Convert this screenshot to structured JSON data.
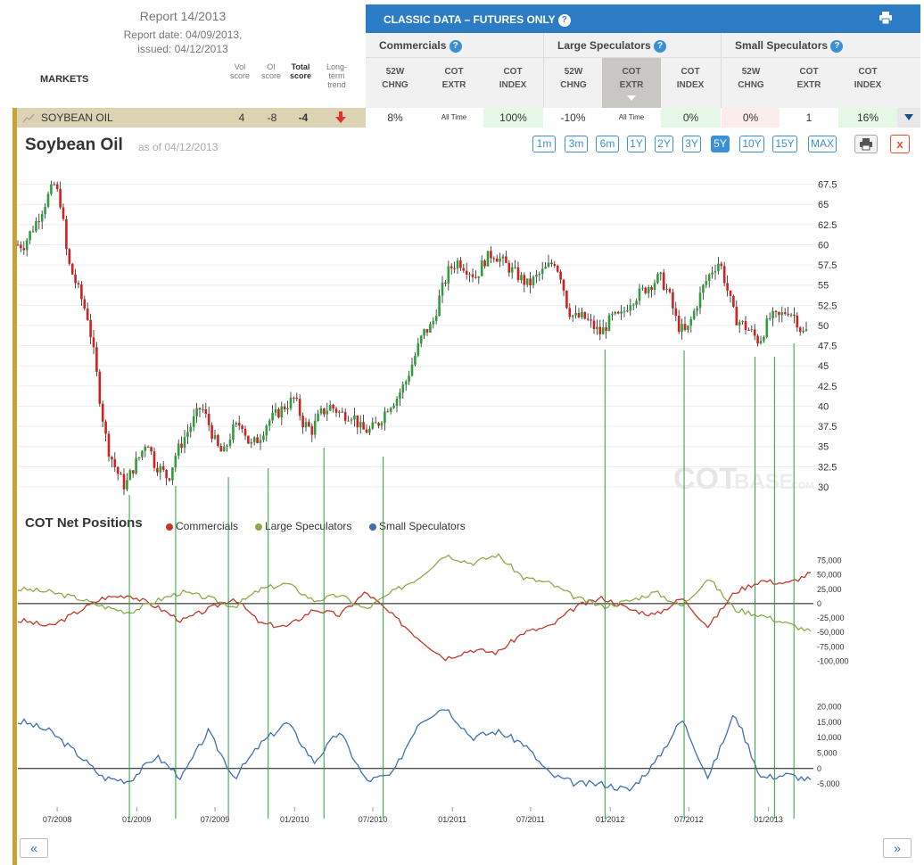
{
  "report": {
    "title": "Report 14/2013",
    "date": "Report date: 04/09/2013,",
    "issued": "issued: 04/12/2013"
  },
  "markets_header": {
    "label": "MARKETS",
    "vol": [
      "Vol",
      "score"
    ],
    "oi": [
      "OI",
      "score"
    ],
    "total": [
      "Total",
      "score"
    ],
    "trend": [
      "Long-",
      "term",
      "trend"
    ]
  },
  "panel": {
    "title": "CLASSIC DATA – FUTURES ONLY",
    "help": "?",
    "groups": [
      "Commercials",
      "Large Speculators",
      "Small Speculators"
    ],
    "columns": [
      [
        "52W",
        "CHNG"
      ],
      [
        "COT",
        "EXTR"
      ],
      [
        "COT",
        "INDEX"
      ],
      [
        "52W",
        "CHNG"
      ],
      [
        "COT",
        "EXTR"
      ],
      [
        "COT",
        "INDEX"
      ],
      [
        "52W",
        "CHNG"
      ],
      [
        "COT",
        "EXTR"
      ],
      [
        "COT",
        "INDEX"
      ]
    ]
  },
  "market_row": {
    "name": "SOYBEAN OIL",
    "vol_score": "4",
    "oi_score": "-8",
    "total_score": "-4",
    "cells": [
      "8%",
      "All Time",
      "100%",
      "-10%",
      "All Time",
      "0%",
      "0%",
      "1",
      "16%"
    ],
    "cell_colors": [
      "#fff",
      "#fff",
      "#e5f8e5",
      "#fff",
      "#fff",
      "#e5f8e5",
      "#fdecec",
      "#fff",
      "#e5f8e5"
    ]
  },
  "chart_header": {
    "title": "Soybean Oil",
    "asof": "as of 04/12/2013",
    "ranges": [
      "1m",
      "3m",
      "6m",
      "1Y",
      "2Y",
      "3Y",
      "5Y",
      "10Y",
      "15Y",
      "MAX"
    ],
    "active_range": "5Y",
    "close": "x"
  },
  "cot": {
    "title": "COT Net Positions",
    "legend": [
      "Commercials",
      "Large Speculators",
      "Small Speculators"
    ]
  },
  "watermark": {
    "bold": "COT",
    "light": "BASE",
    "suffix": ".COM"
  },
  "nav": {
    "prev": "«",
    "next": "»"
  },
  "colors": {
    "accent": "#2b7cc4",
    "commercials": "#c0392b",
    "large_specs": "#8aab4a",
    "small_specs": "#3e6fae",
    "up_candle": "#2e9e3a",
    "down_candle": "#d21f1f",
    "vline": "#2e9e3a",
    "sidebar": "#c9a233"
  },
  "chart_data": [
    {
      "type": "candlestick",
      "title": "Soybean Oil",
      "y_ticks": [
        "67.5",
        "65",
        "62.5",
        "60",
        "57.5",
        "55",
        "52.5",
        "50",
        "47.5",
        "45",
        "42.5",
        "40",
        "37.5",
        "35",
        "32.5",
        "30"
      ],
      "ylim": [
        29,
        69
      ],
      "x_ticks": [
        "07/2008",
        "01/2009",
        "07/2009",
        "01/2010",
        "07/2010",
        "01/2011",
        "07/2011",
        "01/2012",
        "07/2012",
        "01/2013"
      ],
      "x_range": [
        "2008-04",
        "2013-04"
      ],
      "close_anchors": [
        [
          "2008-04-15",
          60
        ],
        [
          "2008-05-15",
          63
        ],
        [
          "2008-06-10",
          66
        ],
        [
          "2008-06-25",
          67.5
        ],
        [
          "2008-07-10",
          65
        ],
        [
          "2008-07-25",
          58
        ],
        [
          "2008-08-15",
          55
        ],
        [
          "2008-09-10",
          51
        ],
        [
          "2008-09-25",
          46
        ],
        [
          "2008-10-10",
          40
        ],
        [
          "2008-10-25",
          35
        ],
        [
          "2008-11-15",
          32
        ],
        [
          "2008-12-05",
          30
        ],
        [
          "2008-12-20",
          32
        ],
        [
          "2009-01-10",
          34
        ],
        [
          "2009-01-25",
          36
        ],
        [
          "2009-02-10",
          33
        ],
        [
          "2009-02-28",
          32
        ],
        [
          "2009-03-15",
          31
        ],
        [
          "2009-04-01",
          34
        ],
        [
          "2009-04-20",
          36
        ],
        [
          "2009-05-10",
          38
        ],
        [
          "2009-05-30",
          40
        ],
        [
          "2009-06-15",
          38
        ],
        [
          "2009-07-05",
          35
        ],
        [
          "2009-07-20",
          34
        ],
        [
          "2009-08-10",
          37
        ],
        [
          "2009-09-01",
          38
        ],
        [
          "2009-09-20",
          35
        ],
        [
          "2009-10-10",
          36
        ],
        [
          "2009-10-30",
          38
        ],
        [
          "2009-11-20",
          39
        ],
        [
          "2009-12-10",
          40
        ],
        [
          "2010-01-01",
          41
        ],
        [
          "2010-01-20",
          38
        ],
        [
          "2010-02-10",
          37
        ],
        [
          "2010-03-01",
          39
        ],
        [
          "2010-03-25",
          40
        ],
        [
          "2010-04-20",
          39
        ],
        [
          "2010-05-15",
          39
        ],
        [
          "2010-06-05",
          37
        ],
        [
          "2010-06-25",
          37
        ],
        [
          "2010-07-15",
          38
        ],
        [
          "2010-08-05",
          40
        ],
        [
          "2010-08-25",
          41
        ],
        [
          "2010-09-15",
          43
        ],
        [
          "2010-10-05",
          46
        ],
        [
          "2010-10-25",
          49
        ],
        [
          "2010-11-15",
          50
        ],
        [
          "2010-12-05",
          54
        ],
        [
          "2010-12-25",
          57
        ],
        [
          "2011-01-15",
          58
        ],
        [
          "2011-02-05",
          57
        ],
        [
          "2011-02-25",
          56
        ],
        [
          "2011-03-15",
          58
        ],
        [
          "2011-04-05",
          59
        ],
        [
          "2011-04-25",
          58
        ],
        [
          "2011-05-15",
          57
        ],
        [
          "2011-06-05",
          56
        ],
        [
          "2011-06-25",
          55
        ],
        [
          "2011-07-15",
          56
        ],
        [
          "2011-08-05",
          57
        ],
        [
          "2011-08-25",
          58
        ],
        [
          "2011-09-10",
          56
        ],
        [
          "2011-09-25",
          52
        ],
        [
          "2011-10-10",
          51
        ],
        [
          "2011-11-01",
          51
        ],
        [
          "2011-11-20",
          50
        ],
        [
          "2011-12-10",
          49
        ],
        [
          "2012-01-05",
          51
        ],
        [
          "2012-01-25",
          51
        ],
        [
          "2012-02-15",
          53
        ],
        [
          "2012-03-10",
          54
        ],
        [
          "2012-04-01",
          55
        ],
        [
          "2012-04-25",
          56
        ],
        [
          "2012-05-15",
          54
        ],
        [
          "2012-06-05",
          50
        ],
        [
          "2012-06-25",
          49
        ],
        [
          "2012-07-15",
          52
        ],
        [
          "2012-08-05",
          55
        ],
        [
          "2012-08-25",
          57
        ],
        [
          "2012-09-10",
          58
        ],
        [
          "2012-09-25",
          55
        ],
        [
          "2012-10-15",
          51
        ],
        [
          "2012-11-05",
          50
        ],
        [
          "2012-11-25",
          49
        ],
        [
          "2012-12-10",
          48
        ],
        [
          "2013-01-05",
          51
        ],
        [
          "2013-01-25",
          51
        ],
        [
          "2013-02-15",
          52
        ],
        [
          "2013-03-05",
          51
        ],
        [
          "2013-03-20",
          49
        ],
        [
          "2013-04-05",
          49.5
        ]
      ]
    },
    {
      "type": "line",
      "title": "COT Net Positions",
      "y_ticks": [
        "75,000",
        "50,000",
        "25,000",
        "0",
        "-25,000",
        "-50,000",
        "-75,000",
        "-100,000"
      ],
      "ylim": [
        -110000,
        85000
      ],
      "series": [
        {
          "name": "Commercials",
          "values": [
            [
              "2008-04",
              -30000
            ],
            [
              "2008-06",
              -40000
            ],
            [
              "2008-08",
              -15000
            ],
            [
              "2008-10",
              10000
            ],
            [
              "2008-12",
              15000
            ],
            [
              "2009-02",
              -5000
            ],
            [
              "2009-04",
              -30000
            ],
            [
              "2009-06",
              -10000
            ],
            [
              "2009-08",
              10000
            ],
            [
              "2009-10",
              -35000
            ],
            [
              "2009-12",
              -40000
            ],
            [
              "2010-02",
              -10000
            ],
            [
              "2010-04",
              -20000
            ],
            [
              "2010-06",
              20000
            ],
            [
              "2010-08",
              -20000
            ],
            [
              "2010-10",
              -60000
            ],
            [
              "2010-12",
              -95000
            ],
            [
              "2011-02",
              -80000
            ],
            [
              "2011-04",
              -85000
            ],
            [
              "2011-06",
              -50000
            ],
            [
              "2011-08",
              -40000
            ],
            [
              "2011-10",
              -5000
            ],
            [
              "2011-12",
              10000
            ],
            [
              "2012-02",
              -10000
            ],
            [
              "2012-04",
              -20000
            ],
            [
              "2012-06",
              10000
            ],
            [
              "2012-08",
              -40000
            ],
            [
              "2012-10",
              20000
            ],
            [
              "2012-12",
              40000
            ],
            [
              "2013-02",
              35000
            ],
            [
              "2013-04",
              55000
            ]
          ]
        },
        {
          "name": "Large Speculators",
          "values": [
            [
              "2008-04",
              25000
            ],
            [
              "2008-06",
              20000
            ],
            [
              "2008-08",
              10000
            ],
            [
              "2008-10",
              -5000
            ],
            [
              "2008-12",
              -15000
            ],
            [
              "2009-02",
              5000
            ],
            [
              "2009-04",
              20000
            ],
            [
              "2009-06",
              10000
            ],
            [
              "2009-08",
              -5000
            ],
            [
              "2009-10",
              25000
            ],
            [
              "2009-12",
              35000
            ],
            [
              "2010-02",
              5000
            ],
            [
              "2010-04",
              15000
            ],
            [
              "2010-06",
              -10000
            ],
            [
              "2010-08",
              20000
            ],
            [
              "2010-10",
              45000
            ],
            [
              "2010-12",
              85000
            ],
            [
              "2011-02",
              70000
            ],
            [
              "2011-04",
              85000
            ],
            [
              "2011-06",
              45000
            ],
            [
              "2011-08",
              35000
            ],
            [
              "2011-10",
              10000
            ],
            [
              "2011-12",
              -5000
            ],
            [
              "2012-02",
              5000
            ],
            [
              "2012-04",
              20000
            ],
            [
              "2012-06",
              -5000
            ],
            [
              "2012-08",
              45000
            ],
            [
              "2012-10",
              -10000
            ],
            [
              "2012-12",
              -20000
            ],
            [
              "2013-02",
              -35000
            ],
            [
              "2013-04",
              -50000
            ]
          ]
        }
      ]
    },
    {
      "type": "line",
      "title": "",
      "y_ticks": [
        "20,000",
        "15,000",
        "10,000",
        "5,000",
        "0",
        "-5,000"
      ],
      "ylim": [
        -9000,
        23000
      ],
      "series": [
        {
          "name": "Small Speculators",
          "values": [
            [
              "2008-04",
              15000
            ],
            [
              "2008-06",
              12000
            ],
            [
              "2008-08",
              5000
            ],
            [
              "2008-10",
              -3000
            ],
            [
              "2008-12",
              -4000
            ],
            [
              "2009-02",
              4000
            ],
            [
              "2009-04",
              -3000
            ],
            [
              "2009-06",
              12000
            ],
            [
              "2009-08",
              -3000
            ],
            [
              "2009-10",
              8000
            ],
            [
              "2009-12",
              15000
            ],
            [
              "2010-02",
              2000
            ],
            [
              "2010-04",
              12000
            ],
            [
              "2010-06",
              -4000
            ],
            [
              "2010-08",
              -2000
            ],
            [
              "2010-10",
              15000
            ],
            [
              "2010-12",
              20000
            ],
            [
              "2011-02",
              10000
            ],
            [
              "2011-04",
              12000
            ],
            [
              "2011-06",
              8000
            ],
            [
              "2011-08",
              -2000
            ],
            [
              "2011-10",
              -5000
            ],
            [
              "2011-12",
              -5000
            ],
            [
              "2012-02",
              -7000
            ],
            [
              "2012-04",
              2000
            ],
            [
              "2012-06",
              16000
            ],
            [
              "2012-08",
              -3000
            ],
            [
              "2012-10",
              18000
            ],
            [
              "2012-12",
              -3000
            ],
            [
              "2013-02",
              -2000
            ],
            [
              "2013-04",
              -4000
            ]
          ]
        }
      ]
    }
  ],
  "vline_dates": [
    "2008-12-15",
    "2009-04-01",
    "2009-08-01",
    "2009-11-01",
    "2010-03-10",
    "2010-07-25",
    "2011-12-20",
    "2012-06-20",
    "2012-12-01",
    "2013-01-15",
    "2013-03-01"
  ]
}
